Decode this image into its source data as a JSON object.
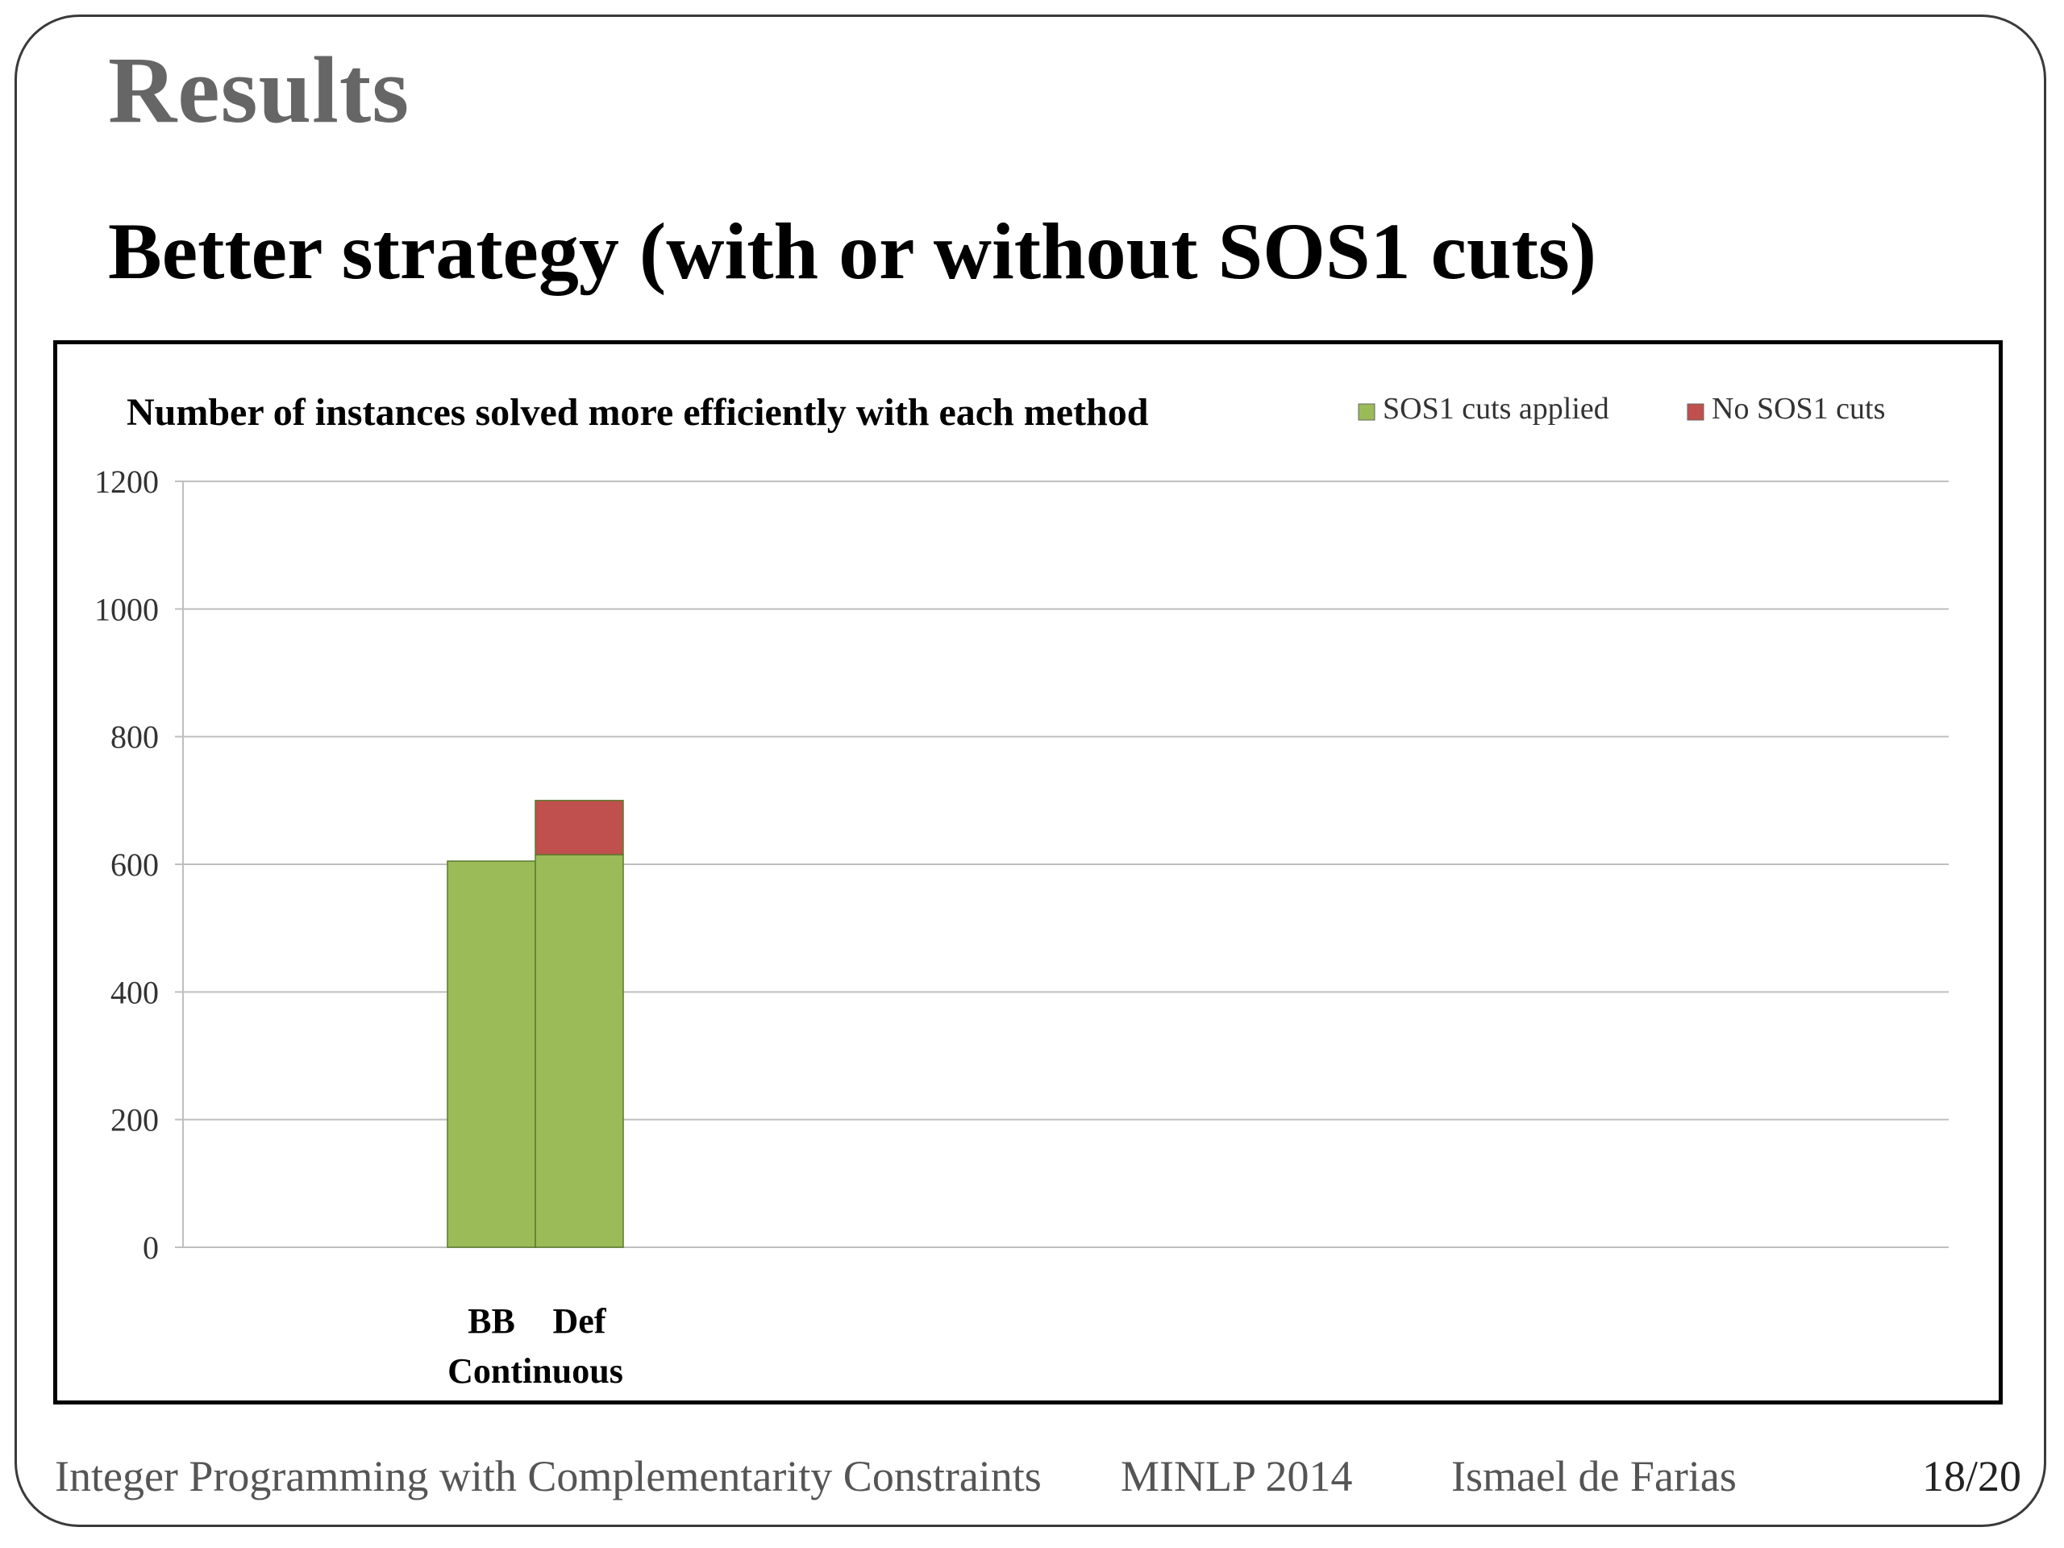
{
  "slide": {
    "heading": "Results",
    "subtitle": "Better strategy (with or without SOS1 cuts)"
  },
  "footer": {
    "course": "Integer Programming with Complementarity Constraints",
    "conference": "MINLP 2014",
    "author": "Ismael de Farias",
    "page": "18/20"
  },
  "chart_data": {
    "type": "bar",
    "stacked": true,
    "title": "Number of instances solved more efficiently with each method",
    "categories": [
      "BB",
      "Def"
    ],
    "group_label": "Continuous",
    "series": [
      {
        "name": "SOS1 cuts applied",
        "color": "#9bbb59",
        "values": [
          605,
          615
        ]
      },
      {
        "name": "No SOS1 cuts",
        "color": "#c0504d",
        "values": [
          0,
          85
        ]
      }
    ],
    "ylim": [
      0,
      1200
    ],
    "yticks": [
      0,
      200,
      400,
      600,
      800,
      1000,
      1200
    ],
    "grid": true,
    "legend_position": "top-right",
    "colors": {
      "grid": "#bfbfbf",
      "bar_edge": "#5a7a2a"
    }
  }
}
